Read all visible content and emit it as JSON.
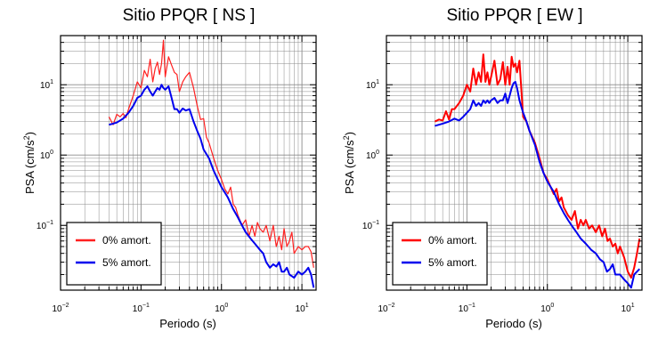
{
  "chart_data": [
    {
      "type": "line",
      "title": "Sitio PPQR [ NS ]",
      "xlabel": "Periodo (s)",
      "ylabel": {
        "base": "PSA (cm/s",
        "sup": "2",
        "tail": ")"
      },
      "xscale": "log",
      "yscale": "log",
      "xlim": [
        0.01,
        15
      ],
      "ylim": [
        0.012,
        50
      ],
      "grid": true,
      "legend_position": "bottom-left",
      "x_ticks": [
        {
          "value": 0.01,
          "base": "10",
          "exp": "−2"
        },
        {
          "value": 0.1,
          "base": "10",
          "exp": "−1"
        },
        {
          "value": 1,
          "base": "10",
          "exp": "0"
        },
        {
          "value": 10,
          "base": "10",
          "exp": "1"
        }
      ],
      "y_ticks": [
        {
          "value": 0.1,
          "base": "10",
          "exp": "−1"
        },
        {
          "value": 1,
          "base": "10",
          "exp": "0"
        },
        {
          "value": 10,
          "base": "10",
          "exp": "1"
        }
      ],
      "series": [
        {
          "name": "0% amort.",
          "color": "#ff2020",
          "width": 1.2,
          "points": [
            [
              0.04,
              3.5
            ],
            [
              0.045,
              2.7
            ],
            [
              0.05,
              3.8
            ],
            [
              0.055,
              3.5
            ],
            [
              0.06,
              3.9
            ],
            [
              0.065,
              3.4
            ],
            [
              0.07,
              4.5
            ],
            [
              0.08,
              7
            ],
            [
              0.09,
              11
            ],
            [
              0.1,
              9
            ],
            [
              0.11,
              16
            ],
            [
              0.12,
              13
            ],
            [
              0.13,
              23
            ],
            [
              0.14,
              11
            ],
            [
              0.15,
              17
            ],
            [
              0.16,
              21
            ],
            [
              0.17,
              14
            ],
            [
              0.18,
              20
            ],
            [
              0.19,
              43
            ],
            [
              0.2,
              13
            ],
            [
              0.22,
              25
            ],
            [
              0.24,
              19
            ],
            [
              0.26,
              15
            ],
            [
              0.28,
              14
            ],
            [
              0.3,
              8
            ],
            [
              0.33,
              11
            ],
            [
              0.36,
              13
            ],
            [
              0.4,
              15
            ],
            [
              0.45,
              9
            ],
            [
              0.5,
              5
            ],
            [
              0.55,
              3.2
            ],
            [
              0.6,
              3.3
            ],
            [
              0.65,
              1.8
            ],
            [
              0.7,
              1.5
            ],
            [
              0.8,
              0.9
            ],
            [
              0.9,
              0.6
            ],
            [
              1.0,
              0.45
            ],
            [
              1.1,
              0.33
            ],
            [
              1.2,
              0.28
            ],
            [
              1.3,
              0.35
            ],
            [
              1.4,
              0.2
            ],
            [
              1.5,
              0.18
            ],
            [
              1.6,
              0.14
            ],
            [
              1.8,
              0.1
            ],
            [
              2.0,
              0.12
            ],
            [
              2.2,
              0.07
            ],
            [
              2.4,
              0.1
            ],
            [
              2.6,
              0.07
            ],
            [
              2.8,
              0.11
            ],
            [
              3.0,
              0.09
            ],
            [
              3.3,
              0.08
            ],
            [
              3.6,
              0.1
            ],
            [
              4.0,
              0.06
            ],
            [
              4.4,
              0.1
            ],
            [
              4.8,
              0.05
            ],
            [
              5.2,
              0.07
            ],
            [
              5.6,
              0.045
            ],
            [
              6.0,
              0.09
            ],
            [
              6.5,
              0.05
            ],
            [
              7.0,
              0.06
            ],
            [
              7.5,
              0.08
            ],
            [
              8.0,
              0.04
            ],
            [
              9.0,
              0.05
            ],
            [
              10.0,
              0.045
            ],
            [
              11.0,
              0.05
            ],
            [
              12.0,
              0.05
            ],
            [
              13.0,
              0.042
            ],
            [
              14.0,
              0.025
            ]
          ]
        },
        {
          "name": "5% amort.",
          "color": "#0000ee",
          "width": 2,
          "points": [
            [
              0.04,
              2.7
            ],
            [
              0.045,
              2.8
            ],
            [
              0.05,
              2.9
            ],
            [
              0.06,
              3.3
            ],
            [
              0.07,
              4
            ],
            [
              0.08,
              5
            ],
            [
              0.09,
              6.5
            ],
            [
              0.1,
              7
            ],
            [
              0.11,
              8.5
            ],
            [
              0.12,
              9.5
            ],
            [
              0.13,
              8
            ],
            [
              0.14,
              7
            ],
            [
              0.15,
              8
            ],
            [
              0.16,
              9
            ],
            [
              0.17,
              8.5
            ],
            [
              0.18,
              10
            ],
            [
              0.19,
              9
            ],
            [
              0.2,
              8.5
            ],
            [
              0.22,
              9.5
            ],
            [
              0.24,
              6.5
            ],
            [
              0.26,
              4.5
            ],
            [
              0.28,
              4.5
            ],
            [
              0.3,
              4
            ],
            [
              0.33,
              4.6
            ],
            [
              0.36,
              4.3
            ],
            [
              0.4,
              4.5
            ],
            [
              0.45,
              3
            ],
            [
              0.5,
              2.2
            ],
            [
              0.55,
              1.7
            ],
            [
              0.6,
              1.2
            ],
            [
              0.7,
              0.9
            ],
            [
              0.8,
              0.6
            ],
            [
              0.9,
              0.45
            ],
            [
              1.0,
              0.35
            ],
            [
              1.2,
              0.25
            ],
            [
              1.4,
              0.17
            ],
            [
              1.6,
              0.13
            ],
            [
              1.8,
              0.1
            ],
            [
              2.0,
              0.08
            ],
            [
              2.3,
              0.065
            ],
            [
              2.6,
              0.055
            ],
            [
              3.0,
              0.045
            ],
            [
              3.3,
              0.04
            ],
            [
              3.6,
              0.03
            ],
            [
              4.0,
              0.025
            ],
            [
              4.4,
              0.028
            ],
            [
              4.8,
              0.026
            ],
            [
              5.2,
              0.03
            ],
            [
              5.6,
              0.022
            ],
            [
              6.0,
              0.022
            ],
            [
              6.5,
              0.025
            ],
            [
              7.0,
              0.02
            ],
            [
              8.0,
              0.018
            ],
            [
              9.0,
              0.022
            ],
            [
              10.0,
              0.02
            ],
            [
              11.0,
              0.022
            ],
            [
              12.0,
              0.025
            ],
            [
              13.0,
              0.02
            ],
            [
              14.0,
              0.013
            ]
          ]
        }
      ]
    },
    {
      "type": "line",
      "title": "Sitio PPQR [ EW ]",
      "xlabel": "Periodo (s)",
      "ylabel": {
        "base": "PSA (cm/s",
        "sup": "2",
        "tail": ")"
      },
      "xscale": "log",
      "yscale": "log",
      "xlim": [
        0.01,
        15
      ],
      "ylim": [
        0.012,
        50
      ],
      "grid": true,
      "legend_position": "bottom-left",
      "x_ticks": [
        {
          "value": 0.01,
          "base": "10",
          "exp": "−2"
        },
        {
          "value": 0.1,
          "base": "10",
          "exp": "−1"
        },
        {
          "value": 1,
          "base": "10",
          "exp": "0"
        },
        {
          "value": 10,
          "base": "10",
          "exp": "1"
        }
      ],
      "y_ticks": [
        {
          "value": 0.1,
          "base": "10",
          "exp": "−1"
        },
        {
          "value": 1,
          "base": "10",
          "exp": "0"
        },
        {
          "value": 10,
          "base": "10",
          "exp": "1"
        }
      ],
      "series": [
        {
          "name": "0% amort.",
          "color": "#ff0000",
          "width": 2,
          "points": [
            [
              0.04,
              3
            ],
            [
              0.045,
              3.2
            ],
            [
              0.05,
              3.1
            ],
            [
              0.055,
              4.2
            ],
            [
              0.06,
              3.2
            ],
            [
              0.065,
              4.5
            ],
            [
              0.07,
              4.5
            ],
            [
              0.08,
              5.5
            ],
            [
              0.09,
              7
            ],
            [
              0.1,
              10
            ],
            [
              0.11,
              8
            ],
            [
              0.12,
              17
            ],
            [
              0.13,
              10
            ],
            [
              0.14,
              15
            ],
            [
              0.15,
              11
            ],
            [
              0.16,
              27
            ],
            [
              0.17,
              11
            ],
            [
              0.18,
              15
            ],
            [
              0.19,
              10
            ],
            [
              0.2,
              13
            ],
            [
              0.22,
              22
            ],
            [
              0.24,
              10
            ],
            [
              0.26,
              12
            ],
            [
              0.28,
              21
            ],
            [
              0.3,
              10
            ],
            [
              0.32,
              18
            ],
            [
              0.34,
              10
            ],
            [
              0.36,
              25
            ],
            [
              0.38,
              18
            ],
            [
              0.4,
              20
            ],
            [
              0.42,
              15
            ],
            [
              0.45,
              22
            ],
            [
              0.5,
              3.5
            ],
            [
              0.55,
              3
            ],
            [
              0.6,
              2.2
            ],
            [
              0.7,
              1.5
            ],
            [
              0.8,
              0.9
            ],
            [
              0.9,
              0.55
            ],
            [
              1.0,
              0.45
            ],
            [
              1.1,
              0.35
            ],
            [
              1.2,
              0.28
            ],
            [
              1.3,
              0.33
            ],
            [
              1.4,
              0.22
            ],
            [
              1.5,
              0.25
            ],
            [
              1.6,
              0.18
            ],
            [
              1.8,
              0.14
            ],
            [
              2.0,
              0.12
            ],
            [
              2.2,
              0.16
            ],
            [
              2.4,
              0.09
            ],
            [
              2.6,
              0.12
            ],
            [
              2.8,
              0.1
            ],
            [
              3.0,
              0.12
            ],
            [
              3.3,
              0.09
            ],
            [
              3.6,
              0.1
            ],
            [
              4.0,
              0.08
            ],
            [
              4.4,
              0.1
            ],
            [
              4.8,
              0.07
            ],
            [
              5.2,
              0.09
            ],
            [
              5.6,
              0.06
            ],
            [
              6.0,
              0.065
            ],
            [
              6.5,
              0.05
            ],
            [
              7.0,
              0.055
            ],
            [
              7.5,
              0.04
            ],
            [
              8.0,
              0.05
            ],
            [
              9.0,
              0.035
            ],
            [
              10.0,
              0.022
            ],
            [
              11.0,
              0.018
            ],
            [
              12.0,
              0.025
            ],
            [
              13.0,
              0.04
            ],
            [
              14.0,
              0.065
            ]
          ]
        },
        {
          "name": "5% amort.",
          "color": "#0000ee",
          "width": 2,
          "points": [
            [
              0.04,
              2.6
            ],
            [
              0.05,
              2.8
            ],
            [
              0.06,
              3
            ],
            [
              0.07,
              3.3
            ],
            [
              0.08,
              3.1
            ],
            [
              0.09,
              3.5
            ],
            [
              0.1,
              4
            ],
            [
              0.11,
              4.5
            ],
            [
              0.12,
              6
            ],
            [
              0.13,
              5
            ],
            [
              0.14,
              5.5
            ],
            [
              0.15,
              5
            ],
            [
              0.16,
              6
            ],
            [
              0.17,
              5.5
            ],
            [
              0.18,
              6
            ],
            [
              0.19,
              5.5
            ],
            [
              0.2,
              6
            ],
            [
              0.22,
              6.5
            ],
            [
              0.24,
              5.5
            ],
            [
              0.26,
              6
            ],
            [
              0.28,
              6
            ],
            [
              0.3,
              7.5
            ],
            [
              0.32,
              5.5
            ],
            [
              0.34,
              7
            ],
            [
              0.36,
              9
            ],
            [
              0.38,
              10.5
            ],
            [
              0.4,
              11
            ],
            [
              0.42,
              9
            ],
            [
              0.45,
              6
            ],
            [
              0.5,
              4
            ],
            [
              0.55,
              3
            ],
            [
              0.6,
              2.2
            ],
            [
              0.7,
              1.4
            ],
            [
              0.8,
              0.8
            ],
            [
              0.9,
              0.55
            ],
            [
              1.0,
              0.42
            ],
            [
              1.2,
              0.3
            ],
            [
              1.4,
              0.2
            ],
            [
              1.6,
              0.15
            ],
            [
              1.8,
              0.12
            ],
            [
              2.0,
              0.1
            ],
            [
              2.3,
              0.08
            ],
            [
              2.6,
              0.065
            ],
            [
              3.0,
              0.055
            ],
            [
              3.5,
              0.045
            ],
            [
              4.0,
              0.04
            ],
            [
              4.5,
              0.033
            ],
            [
              5.0,
              0.03
            ],
            [
              5.5,
              0.022
            ],
            [
              6.0,
              0.024
            ],
            [
              6.5,
              0.028
            ],
            [
              7.0,
              0.02
            ],
            [
              8.0,
              0.02
            ],
            [
              9.0,
              0.017
            ],
            [
              10.0,
              0.015
            ],
            [
              11.0,
              0.013
            ],
            [
              12.0,
              0.02
            ],
            [
              13.0,
              0.022
            ],
            [
              14.0,
              0.024
            ]
          ]
        }
      ]
    }
  ]
}
